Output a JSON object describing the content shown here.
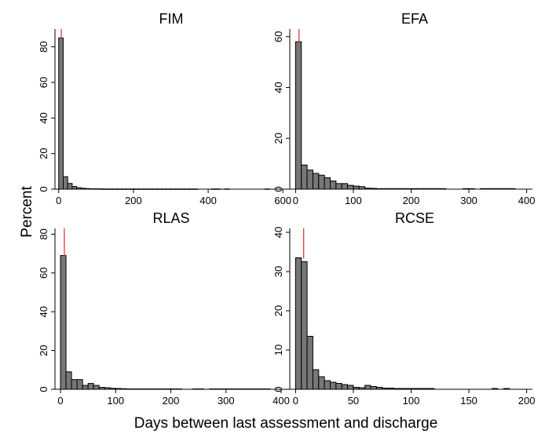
{
  "chart_data": {
    "type": "bar",
    "xlabel": "Days between last assessment and discharge",
    "ylabel": "Percent",
    "bar_color": "#777777",
    "marker_color": "#e8373b",
    "panels": [
      {
        "title": "FIM",
        "xlim": [
          -10,
          610
        ],
        "ylim": [
          0,
          90
        ],
        "xticks": [
          0,
          200,
          400,
          600
        ],
        "yticks": [
          0,
          20,
          40,
          60,
          80
        ],
        "marker_x": 7,
        "bin_width": 12,
        "bins": [
          {
            "x0": 0,
            "v": 85
          },
          {
            "x0": 12,
            "v": 7
          },
          {
            "x0": 24,
            "v": 3.2
          },
          {
            "x0": 36,
            "v": 1.5
          },
          {
            "x0": 48,
            "v": 0.8
          },
          {
            "x0": 60,
            "v": 0.5
          },
          {
            "x0": 72,
            "v": 0.3
          },
          {
            "x0": 84,
            "v": 0.2
          },
          {
            "x0": 96,
            "v": 0.2
          },
          {
            "x0": 108,
            "v": 0.15
          },
          {
            "x0": 120,
            "v": 0.1
          },
          {
            "x0": 132,
            "v": 0.1
          },
          {
            "x0": 144,
            "v": 0.1
          },
          {
            "x0": 156,
            "v": 0.1
          },
          {
            "x0": 168,
            "v": 0.1
          },
          {
            "x0": 180,
            "v": 0.1
          },
          {
            "x0": 192,
            "v": 0.1
          },
          {
            "x0": 204,
            "v": 0.1
          },
          {
            "x0": 216,
            "v": 0.1
          },
          {
            "x0": 228,
            "v": 0.1
          },
          {
            "x0": 240,
            "v": 0.1
          },
          {
            "x0": 252,
            "v": 0.1
          },
          {
            "x0": 264,
            "v": 0.1
          },
          {
            "x0": 276,
            "v": 0.1
          },
          {
            "x0": 288,
            "v": 0.1
          },
          {
            "x0": 300,
            "v": 0.1
          },
          {
            "x0": 312,
            "v": 0.1
          },
          {
            "x0": 324,
            "v": 0.1
          },
          {
            "x0": 336,
            "v": 0.1
          },
          {
            "x0": 348,
            "v": 0.1
          },
          {
            "x0": 360,
            "v": 0.1
          },
          {
            "x0": 408,
            "v": 0.1
          },
          {
            "x0": 420,
            "v": 0.1
          },
          {
            "x0": 444,
            "v": 0.1
          },
          {
            "x0": 552,
            "v": 0.1
          }
        ]
      },
      {
        "title": "EFA",
        "xlim": [
          -10,
          410
        ],
        "ylim": [
          0,
          63
        ],
        "xticks": [
          0,
          100,
          200,
          300,
          400
        ],
        "yticks": [
          0,
          20,
          40,
          60
        ],
        "marker_x": 6,
        "bin_width": 10,
        "bins": [
          {
            "x0": 0,
            "v": 58
          },
          {
            "x0": 10,
            "v": 9.5
          },
          {
            "x0": 20,
            "v": 7.5
          },
          {
            "x0": 30,
            "v": 6.2
          },
          {
            "x0": 40,
            "v": 5.5
          },
          {
            "x0": 50,
            "v": 4.5
          },
          {
            "x0": 60,
            "v": 3.2
          },
          {
            "x0": 70,
            "v": 2.2
          },
          {
            "x0": 80,
            "v": 2.2
          },
          {
            "x0": 90,
            "v": 1.5
          },
          {
            "x0": 100,
            "v": 1.2
          },
          {
            "x0": 110,
            "v": 1.0
          },
          {
            "x0": 120,
            "v": 0.4
          },
          {
            "x0": 130,
            "v": 0.3
          },
          {
            "x0": 140,
            "v": 0.2
          },
          {
            "x0": 150,
            "v": 0.2
          },
          {
            "x0": 160,
            "v": 0.2
          },
          {
            "x0": 170,
            "v": 0.2
          },
          {
            "x0": 180,
            "v": 0.2
          },
          {
            "x0": 190,
            "v": 0.2
          },
          {
            "x0": 200,
            "v": 0.2
          },
          {
            "x0": 210,
            "v": 0.2
          },
          {
            "x0": 220,
            "v": 0.2
          },
          {
            "x0": 230,
            "v": 0.2
          },
          {
            "x0": 240,
            "v": 0.2
          },
          {
            "x0": 250,
            "v": 0.2
          },
          {
            "x0": 290,
            "v": 0.2
          },
          {
            "x0": 300,
            "v": 0.2
          },
          {
            "x0": 320,
            "v": 0.2
          },
          {
            "x0": 330,
            "v": 0.2
          },
          {
            "x0": 340,
            "v": 0.2
          },
          {
            "x0": 350,
            "v": 0.2
          },
          {
            "x0": 360,
            "v": 0.2
          },
          {
            "x0": 370,
            "v": 0.2
          }
        ]
      },
      {
        "title": "RLAS",
        "xlim": [
          -10,
          410
        ],
        "ylim": [
          0,
          83
        ],
        "xticks": [
          0,
          100,
          200,
          300,
          400
        ],
        "yticks": [
          0,
          20,
          40,
          60,
          80
        ],
        "marker_x": 7,
        "bin_width": 10,
        "bins": [
          {
            "x0": 0,
            "v": 69
          },
          {
            "x0": 10,
            "v": 9
          },
          {
            "x0": 20,
            "v": 5
          },
          {
            "x0": 30,
            "v": 5
          },
          {
            "x0": 40,
            "v": 2
          },
          {
            "x0": 50,
            "v": 3
          },
          {
            "x0": 60,
            "v": 2
          },
          {
            "x0": 70,
            "v": 1
          },
          {
            "x0": 80,
            "v": 0.8
          },
          {
            "x0": 90,
            "v": 0.5
          },
          {
            "x0": 100,
            "v": 0.4
          },
          {
            "x0": 110,
            "v": 0.3
          },
          {
            "x0": 120,
            "v": 0.2
          },
          {
            "x0": 130,
            "v": 0.2
          },
          {
            "x0": 140,
            "v": 0.2
          },
          {
            "x0": 150,
            "v": 0.2
          },
          {
            "x0": 160,
            "v": 0.2
          },
          {
            "x0": 170,
            "v": 0.2
          },
          {
            "x0": 180,
            "v": 0.2
          },
          {
            "x0": 190,
            "v": 0.2
          },
          {
            "x0": 200,
            "v": 0.2
          },
          {
            "x0": 210,
            "v": 0.2
          },
          {
            "x0": 240,
            "v": 0.2
          },
          {
            "x0": 250,
            "v": 0.2
          },
          {
            "x0": 270,
            "v": 0.2
          },
          {
            "x0": 280,
            "v": 0.2
          },
          {
            "x0": 290,
            "v": 0.2
          },
          {
            "x0": 300,
            "v": 0.2
          },
          {
            "x0": 310,
            "v": 0.2
          },
          {
            "x0": 320,
            "v": 0.2
          },
          {
            "x0": 330,
            "v": 0.2
          },
          {
            "x0": 340,
            "v": 0.2
          },
          {
            "x0": 350,
            "v": 0.2
          },
          {
            "x0": 360,
            "v": 0.2
          },
          {
            "x0": 370,
            "v": 0.2
          }
        ]
      },
      {
        "title": "RCSE",
        "xlim": [
          -5,
          205
        ],
        "ylim": [
          0,
          41
        ],
        "xticks": [
          0,
          50,
          100,
          150,
          200
        ],
        "yticks": [
          0,
          10,
          20,
          30,
          40
        ],
        "marker_x": 7,
        "bin_width": 5,
        "bins": [
          {
            "x0": 0,
            "v": 33.5
          },
          {
            "x0": 5,
            "v": 32.5
          },
          {
            "x0": 10,
            "v": 13.5
          },
          {
            "x0": 15,
            "v": 5
          },
          {
            "x0": 20,
            "v": 3.2
          },
          {
            "x0": 25,
            "v": 2.2
          },
          {
            "x0": 30,
            "v": 1.8
          },
          {
            "x0": 35,
            "v": 1.5
          },
          {
            "x0": 40,
            "v": 1.2
          },
          {
            "x0": 45,
            "v": 1.0
          },
          {
            "x0": 50,
            "v": 0.5
          },
          {
            "x0": 55,
            "v": 0.4
          },
          {
            "x0": 60,
            "v": 1.0
          },
          {
            "x0": 65,
            "v": 0.7
          },
          {
            "x0": 70,
            "v": 0.5
          },
          {
            "x0": 75,
            "v": 0.3
          },
          {
            "x0": 80,
            "v": 0.3
          },
          {
            "x0": 85,
            "v": 0.2
          },
          {
            "x0": 90,
            "v": 0.2
          },
          {
            "x0": 95,
            "v": 0.2
          },
          {
            "x0": 100,
            "v": 0.2
          },
          {
            "x0": 105,
            "v": 0.2
          },
          {
            "x0": 110,
            "v": 0.2
          },
          {
            "x0": 115,
            "v": 0.2
          },
          {
            "x0": 170,
            "v": 0.2
          },
          {
            "x0": 180,
            "v": 0.2
          }
        ]
      }
    ]
  }
}
